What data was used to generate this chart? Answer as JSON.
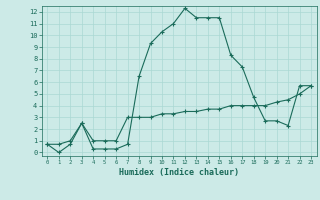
{
  "title": "",
  "xlabel": "Humidex (Indice chaleur)",
  "ylabel": "",
  "bg_color": "#cceae7",
  "line_color": "#1a6b5a",
  "grid_color": "#aad8d3",
  "series1_x": [
    0,
    1,
    2,
    3,
    4,
    5,
    6,
    7,
    8,
    9,
    10,
    11,
    12,
    13,
    14,
    15,
    16,
    17,
    18,
    19,
    20,
    21,
    22,
    23
  ],
  "series1_y": [
    0.7,
    0.0,
    0.7,
    2.5,
    0.3,
    0.3,
    0.3,
    0.7,
    6.5,
    9.3,
    10.3,
    11.0,
    12.3,
    11.5,
    11.5,
    11.5,
    8.3,
    7.3,
    4.7,
    2.7,
    2.7,
    2.3,
    5.7,
    5.7
  ],
  "series2_x": [
    0,
    1,
    2,
    3,
    4,
    5,
    6,
    7,
    8,
    9,
    10,
    11,
    12,
    13,
    14,
    15,
    16,
    17,
    18,
    19,
    20,
    21,
    22,
    23
  ],
  "series2_y": [
    0.7,
    0.7,
    1.0,
    2.5,
    1.0,
    1.0,
    1.0,
    3.0,
    3.0,
    3.0,
    3.3,
    3.3,
    3.5,
    3.5,
    3.7,
    3.7,
    4.0,
    4.0,
    4.0,
    4.0,
    4.3,
    4.5,
    5.0,
    5.7
  ],
  "xlim": [
    -0.5,
    23.5
  ],
  "ylim": [
    -0.3,
    12.5
  ],
  "yticks": [
    0,
    1,
    2,
    3,
    4,
    5,
    6,
    7,
    8,
    9,
    10,
    11,
    12
  ],
  "xticks": [
    0,
    1,
    2,
    3,
    4,
    5,
    6,
    7,
    8,
    9,
    10,
    11,
    12,
    13,
    14,
    15,
    16,
    17,
    18,
    19,
    20,
    21,
    22,
    23
  ]
}
